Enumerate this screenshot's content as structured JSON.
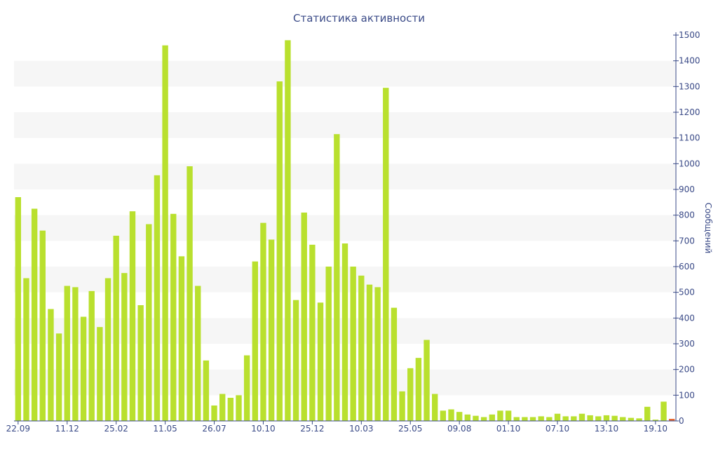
{
  "chart_data": {
    "type": "bar",
    "title": "Статистика активности",
    "ylabel": "Сообщений",
    "xlabel": "",
    "ylim": [
      0,
      1500
    ],
    "y_ticks": [
      0,
      100,
      200,
      300,
      400,
      500,
      600,
      700,
      800,
      900,
      1000,
      1100,
      1200,
      1300,
      1400,
      1500
    ],
    "y_axis_position": "right",
    "grid": "horizontal alternating bands",
    "legend": "none",
    "x_tick_labels": [
      {
        "label": "22.09",
        "index": 0
      },
      {
        "label": "11.12",
        "index": 6
      },
      {
        "label": "25.02",
        "index": 12
      },
      {
        "label": "11.05",
        "index": 18
      },
      {
        "label": "26.07",
        "index": 24
      },
      {
        "label": "10.10",
        "index": 30
      },
      {
        "label": "25.12",
        "index": 36
      },
      {
        "label": "10.03",
        "index": 42
      },
      {
        "label": "25.05",
        "index": 48
      },
      {
        "label": "09.08",
        "index": 54
      },
      {
        "label": "01.10",
        "index": 60
      },
      {
        "label": "07.10",
        "index": 66
      },
      {
        "label": "13.10",
        "index": 72
      },
      {
        "label": "19.10",
        "index": 78
      }
    ],
    "series": [
      {
        "color": "#b9e02e",
        "values": [
          870,
          555,
          825,
          740,
          435,
          340,
          525,
          520,
          405,
          505,
          365,
          555,
          720,
          575,
          815,
          450,
          765,
          955,
          1460,
          805,
          640,
          990,
          525,
          235,
          60,
          105,
          90,
          100,
          255,
          620,
          770,
          705,
          1320,
          1480,
          470,
          810,
          685,
          460,
          600,
          1115,
          690,
          600,
          565,
          530,
          520,
          1295,
          440,
          115,
          205,
          245,
          315,
          105,
          40,
          45,
          35,
          25,
          20,
          15,
          25,
          40,
          40,
          15,
          15,
          15,
          18,
          15,
          28,
          18,
          18,
          28,
          22,
          18,
          22,
          20,
          15,
          12,
          10,
          55,
          5,
          75,
          8
        ]
      }
    ],
    "highlight": {
      "index": 80,
      "color": "#e5652f"
    }
  }
}
